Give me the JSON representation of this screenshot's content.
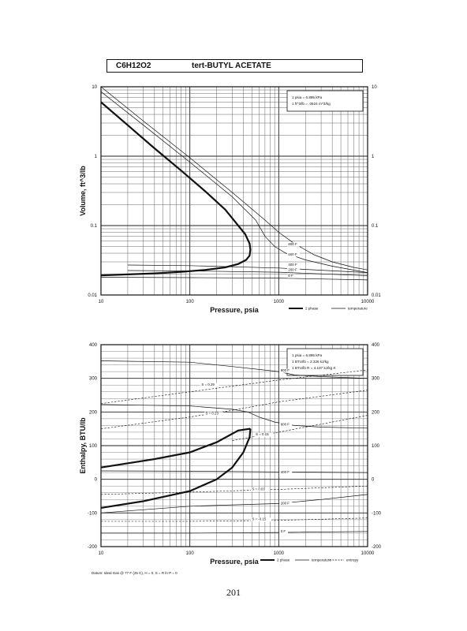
{
  "header": {
    "formula": "C6H12O2",
    "name": "tert-BUTYL ACETATE"
  },
  "page_number": "201",
  "footnote": "Datum: Ideal Gas @ 77 F (25 C), H = 0, S = R ln P = 0",
  "chart_data": [
    {
      "type": "line",
      "xscale": "log",
      "yscale": "log",
      "xlim": [
        10,
        10000
      ],
      "ylim": [
        0.01,
        10
      ],
      "xlabel": "Pressure,  psia",
      "ylabel": "Volume,  ft^3/lb",
      "xticks": [
        "10",
        "100",
        "1000",
        "10000"
      ],
      "yticks": [
        "0.01",
        "0.1",
        "1",
        "10"
      ],
      "conversions": [
        "1 psia = 6.895 kPa",
        "1 ft^3/lb = .0624 m^3/kg"
      ],
      "legend": [
        "2 phase",
        "temperature"
      ],
      "series": [
        {
          "kind": "two-phase",
          "x": [
            10,
            20,
            40,
            80,
            150,
            250,
            350,
            420,
            470,
            480,
            470,
            430,
            350,
            250,
            150,
            80,
            40,
            20,
            10
          ],
          "y": [
            6,
            2.8,
            1.3,
            0.62,
            0.31,
            0.17,
            0.1,
            0.075,
            0.055,
            0.045,
            0.037,
            0.032,
            0.028,
            0.025,
            0.023,
            0.0215,
            0.0205,
            0.0198,
            0.0192
          ]
        },
        {
          "name": "800 F",
          "x": [
            10,
            30,
            100,
            300,
            700,
            1000,
            1500,
            2500,
            4000,
            7000,
            10000
          ],
          "y": [
            10,
            3.2,
            0.95,
            0.3,
            0.12,
            0.08,
            0.055,
            0.038,
            0.03,
            0.025,
            0.023
          ]
        },
        {
          "name": "600 F",
          "x": [
            10,
            30,
            100,
            300,
            550,
            700,
            900,
            1200,
            2000,
            4000,
            10000
          ],
          "y": [
            8.5,
            2.8,
            0.82,
            0.26,
            0.12,
            0.07,
            0.05,
            0.04,
            0.032,
            0.026,
            0.021
          ]
        },
        {
          "name": "400 F",
          "x": [
            20,
            100,
            1000,
            10000
          ],
          "y": [
            0.027,
            0.0265,
            0.0245,
            0.021
          ]
        },
        {
          "name": "200 F",
          "x": [
            20,
            100,
            1000,
            10000
          ],
          "y": [
            0.0225,
            0.0222,
            0.0213,
            0.019
          ]
        },
        {
          "name": "0 F",
          "x": [
            10,
            100,
            1000,
            10000
          ],
          "y": [
            0.018,
            0.0178,
            0.0175,
            0.0165
          ]
        }
      ],
      "curve_labels": [
        {
          "text": "800 F",
          "x": 1280,
          "y": 0.052
        },
        {
          "text": "600 F",
          "x": 1280,
          "y": 0.037
        },
        {
          "text": "400 F",
          "x": 1280,
          "y": 0.0265
        },
        {
          "text": "200 F",
          "x": 1280,
          "y": 0.0222
        },
        {
          "text": "0 F",
          "x": 1280,
          "y": 0.0182
        }
      ]
    },
    {
      "type": "line",
      "xscale": "log",
      "yscale": "linear",
      "xlim": [
        10,
        10000
      ],
      "ylim": [
        -200,
        400
      ],
      "xlabel": "Pressure,  psia",
      "ylabel": "Enthalpy, BTU/lb",
      "xticks": [
        "10",
        "100",
        "1000",
        "10000"
      ],
      "yticks": [
        "-200",
        "-100",
        "0",
        "100",
        "200",
        "300",
        "400"
      ],
      "conversions": [
        "1 psia = 6.895 kPa",
        "1 BTU/lb = 2.326 kJ/kg",
        "1 BTU/lb R = 4.187 kJ/kg K"
      ],
      "legend": [
        "2 phase",
        "temperature",
        "entropy"
      ],
      "series": [
        {
          "kind": "two-phase",
          "x": [
            10,
            30,
            100,
            200,
            300,
            400,
            470,
            480,
            470,
            350,
            200,
            100,
            40,
            10
          ],
          "y": [
            -85,
            -65,
            -35,
            0,
            35,
            80,
            125,
            148,
            150,
            145,
            110,
            80,
            60,
            35
          ]
        },
        {
          "name": "800 F",
          "x": [
            10,
            100,
            300,
            1000,
            1500,
            3000,
            10000
          ],
          "y": [
            352,
            348,
            335,
            320,
            310,
            305,
            300
          ]
        },
        {
          "name": "600 F",
          "x": [
            10,
            100,
            300,
            450,
            600,
            900,
            1500,
            3000,
            10000
          ],
          "y": [
            222,
            218,
            208,
            200,
            185,
            170,
            160,
            155,
            152
          ]
        },
        {
          "name": "400 F",
          "x": [
            10,
            100,
            1000,
            10000
          ],
          "y": [
            25,
            24,
            22,
            20
          ]
        },
        {
          "name": "200 F",
          "x": [
            10,
            100,
            1000,
            3000,
            10000
          ],
          "y": [
            -100,
            -80,
            -72,
            -60,
            -45
          ]
        },
        {
          "name": "0 F",
          "x": [
            10,
            100,
            1000,
            10000
          ],
          "y": [
            -160,
            -160,
            -158,
            -155
          ]
        },
        {
          "name": "S = 0.29",
          "kind": "entropy",
          "x": [
            10,
            100,
            1000,
            10000
          ],
          "y": [
            225,
            260,
            295,
            325
          ]
        },
        {
          "name": "S = 0.23",
          "kind": "entropy",
          "x": [
            10,
            100,
            300,
            1000,
            10000
          ],
          "y": [
            150,
            185,
            205,
            230,
            265
          ]
        },
        {
          "name": "S = 0.15",
          "kind": "entropy",
          "x": [
            300,
            1000,
            10000
          ],
          "y": [
            115,
            140,
            190
          ]
        },
        {
          "name": "S = 0.03",
          "kind": "entropy",
          "x": [
            10,
            100,
            1000,
            10000
          ],
          "y": [
            -45,
            -38,
            -30,
            -20
          ]
        },
        {
          "name": "S = -0.15",
          "kind": "entropy",
          "x": [
            10,
            100,
            1000,
            10000
          ],
          "y": [
            -125,
            -125,
            -122,
            -115
          ]
        }
      ],
      "curve_labels": [
        {
          "text": "800 F",
          "x": 1050,
          "y": 320
        },
        {
          "text": "600 F",
          "x": 1050,
          "y": 160
        },
        {
          "text": "400 F",
          "x": 1050,
          "y": 18
        },
        {
          "text": "200 F",
          "x": 1050,
          "y": -75
        },
        {
          "text": "0 F",
          "x": 1050,
          "y": -158
        },
        {
          "text": "S = 0.29",
          "x": 135,
          "y": 278
        },
        {
          "text": "S = 0.23",
          "x": 150,
          "y": 192
        },
        {
          "text": "S = 0.15",
          "x": 550,
          "y": 130
        },
        {
          "text": "S = 0.03",
          "x": 500,
          "y": -33
        },
        {
          "text": "S = -0.15",
          "x": 500,
          "y": -122
        }
      ]
    }
  ]
}
